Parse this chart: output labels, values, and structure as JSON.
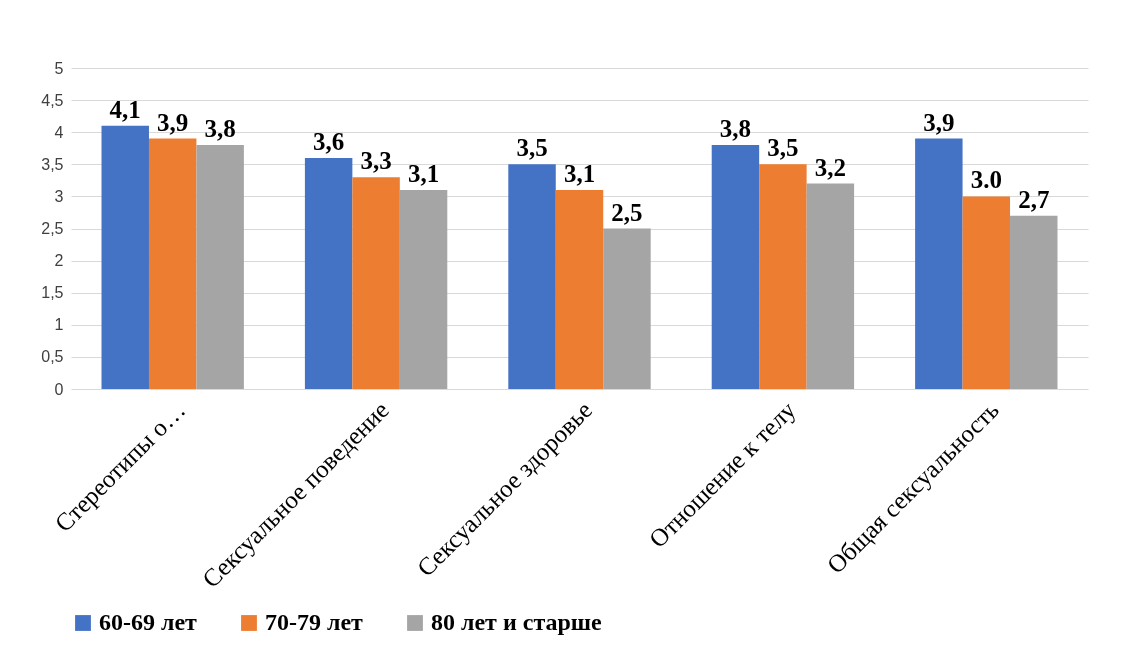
{
  "chart_data": {
    "type": "bar",
    "categories": [
      "Стереотипы о…",
      "Сексуальное поведение",
      "Сексуальное здоровье",
      "Отношение к телу",
      "Общая сексуальность"
    ],
    "series": [
      {
        "name": "60-69 лет",
        "color": "#4472c4",
        "values": [
          4.1,
          3.6,
          3.5,
          3.8,
          3.9
        ],
        "value_labels": [
          "4,1",
          "3,6",
          "3,5",
          "3,8",
          "3,9"
        ]
      },
      {
        "name": "70-79 лет",
        "color": "#ed7d31",
        "values": [
          3.9,
          3.3,
          3.1,
          3.5,
          3.0
        ],
        "value_labels": [
          "3,9",
          "3,3",
          "3,1",
          "3,5",
          "3.0"
        ]
      },
      {
        "name": "80 лет и старше",
        "color": "#a5a5a5",
        "values": [
          3.8,
          3.1,
          2.5,
          3.2,
          2.7
        ],
        "value_labels": [
          "3,8",
          "3,1",
          "2,5",
          "3,2",
          "2,7"
        ]
      }
    ],
    "ylim": [
      0,
      5
    ],
    "yticks": [
      0,
      {
        "value": 0.5,
        "label": "0,5"
      },
      1,
      {
        "value": 1.5,
        "label": "1,5"
      },
      2,
      {
        "value": 2.5,
        "label": "2,5"
      },
      3,
      {
        "value": 3.5,
        "label": "3,5"
      },
      4,
      {
        "value": 4.5,
        "label": "4,5"
      },
      5
    ],
    "grid": true,
    "legend": "bottom"
  }
}
